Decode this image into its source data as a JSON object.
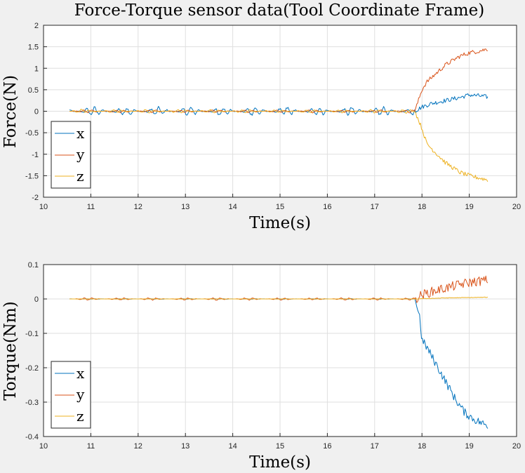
{
  "chart_data": [
    {
      "type": "line",
      "title": "Force-Torque sensor data(Tool Coordinate Frame)",
      "xlabel": "Time(s)",
      "ylabel": "Force(N)",
      "xlim": [
        10,
        20
      ],
      "ylim": [
        -2,
        2
      ],
      "xticks": [
        10,
        11,
        12,
        13,
        14,
        15,
        16,
        17,
        18,
        19,
        20
      ],
      "yticks": [
        2,
        1.5,
        1,
        0.5,
        0,
        -0.5,
        -1,
        -1.5,
        -2
      ],
      "ytick_labels": [
        "2",
        "1.5",
        "1",
        "0.5",
        "0",
        "-0.5",
        "-1",
        "-1.5",
        "-2"
      ],
      "grid": true,
      "legend_position": "bottom-left",
      "series": [
        {
          "name": "x",
          "color": "#0072bd",
          "x": [
            10.55,
            17.85,
            18.0,
            18.2,
            18.5,
            18.8,
            19.0,
            19.2,
            19.4
          ],
          "y": [
            0,
            0,
            0.1,
            0.18,
            0.25,
            0.32,
            0.38,
            0.36,
            0.33
          ],
          "noise_amplitude": [
            0.12,
            0.05
          ]
        },
        {
          "name": "y",
          "color": "#d95319",
          "x": [
            10.55,
            17.85,
            18.0,
            18.1,
            18.3,
            18.5,
            18.8,
            19.0,
            19.2,
            19.4
          ],
          "y": [
            0,
            0,
            0.5,
            0.68,
            0.88,
            1.08,
            1.28,
            1.36,
            1.4,
            1.45
          ],
          "noise_amplitude": [
            0.04,
            0.05
          ]
        },
        {
          "name": "z",
          "color": "#edb120",
          "x": [
            10.55,
            17.85,
            18.0,
            18.1,
            18.3,
            18.5,
            18.8,
            19.0,
            19.2,
            19.4
          ],
          "y": [
            0,
            0,
            -0.4,
            -0.75,
            -0.98,
            -1.2,
            -1.42,
            -1.5,
            -1.55,
            -1.6
          ],
          "noise_amplitude": [
            0.05,
            0.05
          ]
        }
      ]
    },
    {
      "type": "line",
      "title": "",
      "xlabel": "Time(s)",
      "ylabel": "Torque(Nm)",
      "xlim": [
        10,
        20
      ],
      "ylim": [
        -0.4,
        0.1
      ],
      "xticks": [
        10,
        11,
        12,
        13,
        14,
        15,
        16,
        17,
        18,
        19,
        20
      ],
      "yticks": [
        0.1,
        0,
        -0.1,
        -0.2,
        -0.3,
        -0.4
      ],
      "ytick_labels": [
        "0.1",
        "0",
        "-0.1",
        "-0.2",
        "-0.3",
        "-0.4"
      ],
      "grid": true,
      "legend_position": "bottom-left",
      "series": [
        {
          "name": "x",
          "color": "#0072bd",
          "x": [
            10.55,
            17.85,
            17.95,
            18.0,
            18.1,
            18.3,
            18.5,
            18.7,
            18.9,
            19.1,
            19.4
          ],
          "y": [
            0,
            0,
            -0.05,
            -0.12,
            -0.14,
            -0.19,
            -0.24,
            -0.29,
            -0.33,
            -0.35,
            -0.37
          ],
          "noise_amplitude": [
            0.001,
            0.012
          ]
        },
        {
          "name": "y",
          "color": "#d95319",
          "x": [
            10.55,
            17.85,
            18.0,
            18.3,
            18.6,
            18.9,
            19.1,
            19.4
          ],
          "y": [
            0,
            0,
            0.012,
            0.025,
            0.035,
            0.045,
            0.05,
            0.055
          ],
          "noise_amplitude": [
            0.004,
            0.014
          ]
        },
        {
          "name": "z",
          "color": "#edb120",
          "x": [
            10.55,
            17.85,
            18.5,
            19.4
          ],
          "y": [
            0,
            0,
            0.003,
            0.005
          ],
          "noise_amplitude": [
            0.0005,
            0.0008
          ]
        }
      ]
    }
  ]
}
